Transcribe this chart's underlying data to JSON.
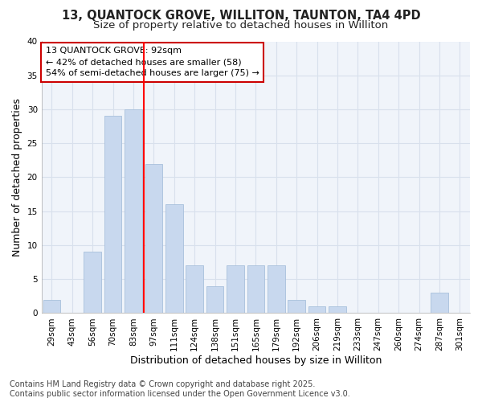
{
  "title1": "13, QUANTOCK GROVE, WILLITON, TAUNTON, TA4 4PD",
  "title2": "Size of property relative to detached houses in Williton",
  "xlabel": "Distribution of detached houses by size in Williton",
  "ylabel": "Number of detached properties",
  "categories": [
    "29sqm",
    "43sqm",
    "56sqm",
    "70sqm",
    "83sqm",
    "97sqm",
    "111sqm",
    "124sqm",
    "138sqm",
    "151sqm",
    "165sqm",
    "179sqm",
    "192sqm",
    "206sqm",
    "219sqm",
    "233sqm",
    "247sqm",
    "260sqm",
    "274sqm",
    "287sqm",
    "301sqm"
  ],
  "values": [
    2,
    0,
    9,
    29,
    30,
    22,
    16,
    7,
    4,
    7,
    7,
    7,
    2,
    1,
    1,
    0,
    0,
    0,
    0,
    3,
    0
  ],
  "bar_color": "#c8d8ee",
  "bar_edge_color": "#a8c0dc",
  "red_line_x": 4.5,
  "annotation_line1": "13 QUANTOCK GROVE: 92sqm",
  "annotation_line2": "← 42% of detached houses are smaller (58)",
  "annotation_line3": "54% of semi-detached houses are larger (75) →",
  "ylim": [
    0,
    40
  ],
  "yticks": [
    0,
    5,
    10,
    15,
    20,
    25,
    30,
    35,
    40
  ],
  "footnote1": "Contains HM Land Registry data © Crown copyright and database right 2025.",
  "footnote2": "Contains public sector information licensed under the Open Government Licence v3.0.",
  "bg_color": "#ffffff",
  "plot_bg_color": "#f0f4fa",
  "grid_color": "#d8e0ec",
  "title_fontsize": 10.5,
  "subtitle_fontsize": 9.5,
  "axis_label_fontsize": 9,
  "tick_fontsize": 7.5,
  "footnote_fontsize": 7,
  "annotation_box_edge": "#cc0000"
}
